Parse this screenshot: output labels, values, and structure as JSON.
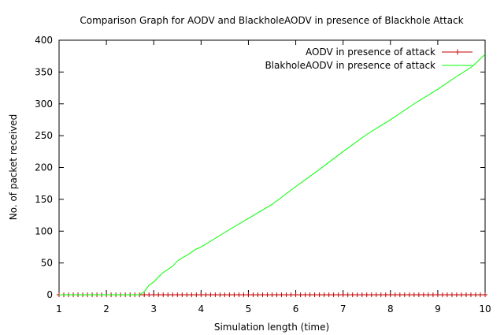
{
  "chart_data": {
    "type": "line",
    "title": "Comparison Graph for AODV and BlackholeAODV in presence of Blackhole Attack",
    "xlabel": "Simulation length (time)",
    "ylabel": "No. of packet received",
    "xlim": [
      1,
      10
    ],
    "ylim": [
      0,
      400
    ],
    "xticks": [
      "1",
      "2",
      "3",
      "4",
      "5",
      "6",
      "7",
      "8",
      "9",
      "10"
    ],
    "yticks": [
      "0",
      "50",
      "100",
      "150",
      "200",
      "250",
      "300",
      "350",
      "400"
    ],
    "legend_position": "top-right",
    "grid": false,
    "series": [
      {
        "name": "AODV in presence of attack",
        "color": "#c00000",
        "marker": "plus",
        "x": [
          1.0,
          1.1,
          1.2,
          1.3,
          1.4,
          1.5,
          1.6,
          1.7,
          1.8,
          1.9,
          2.0,
          2.1,
          2.2,
          2.3,
          2.4,
          2.5,
          2.6,
          2.7,
          2.8,
          2.9,
          3.0,
          3.1,
          3.2,
          3.3,
          3.4,
          3.5,
          3.6,
          3.7,
          3.8,
          3.9,
          4.0,
          4.1,
          4.2,
          4.3,
          4.4,
          4.5,
          4.6,
          4.7,
          4.8,
          4.9,
          5.0,
          5.1,
          5.2,
          5.3,
          5.4,
          5.5,
          5.6,
          5.7,
          5.8,
          5.9,
          6.0,
          6.1,
          6.2,
          6.3,
          6.4,
          6.5,
          6.6,
          6.7,
          6.8,
          6.9,
          7.0,
          7.1,
          7.2,
          7.3,
          7.4,
          7.5,
          7.6,
          7.7,
          7.8,
          7.9,
          8.0,
          8.1,
          8.2,
          8.3,
          8.4,
          8.5,
          8.6,
          8.7,
          8.8,
          8.9,
          9.0,
          9.1,
          9.2,
          9.3,
          9.4,
          9.5,
          9.6,
          9.7,
          9.8,
          9.9,
          10.0
        ],
        "y": [
          0,
          0,
          0,
          0,
          0,
          0,
          0,
          0,
          0,
          0,
          0,
          0,
          0,
          0,
          0,
          0,
          0,
          0,
          0,
          0,
          0,
          0,
          0,
          0,
          0,
          0,
          0,
          0,
          0,
          0,
          0,
          0,
          0,
          0,
          0,
          0,
          0,
          0,
          0,
          0,
          0,
          0,
          0,
          0,
          0,
          0,
          0,
          0,
          0,
          0,
          0,
          0,
          0,
          0,
          0,
          0,
          0,
          0,
          0,
          0,
          0,
          0,
          0,
          0,
          0,
          0,
          0,
          0,
          0,
          0,
          0,
          0,
          0,
          0,
          0,
          0,
          0,
          0,
          0,
          0,
          0,
          0,
          0,
          0,
          0,
          0,
          0,
          0,
          0,
          0,
          0
        ]
      },
      {
        "name": "BlakholeAODV in presence of attack",
        "color": "#00ff00",
        "marker": "none",
        "x": [
          1.0,
          2.7,
          2.8,
          2.9,
          3.0,
          3.1,
          3.2,
          3.3,
          3.4,
          3.5,
          3.6,
          3.7,
          3.8,
          3.9,
          4.0,
          4.5,
          5.0,
          5.5,
          6.0,
          6.5,
          7.0,
          7.5,
          8.0,
          8.5,
          9.0,
          9.5,
          9.7,
          9.85,
          10.0
        ],
        "y": [
          0,
          0,
          5,
          15,
          20,
          28,
          35,
          40,
          45,
          53,
          58,
          62,
          67,
          72,
          75,
          98,
          120,
          142,
          170,
          197,
          225,
          252,
          275,
          300,
          323,
          348,
          357,
          367,
          378
        ]
      }
    ]
  }
}
